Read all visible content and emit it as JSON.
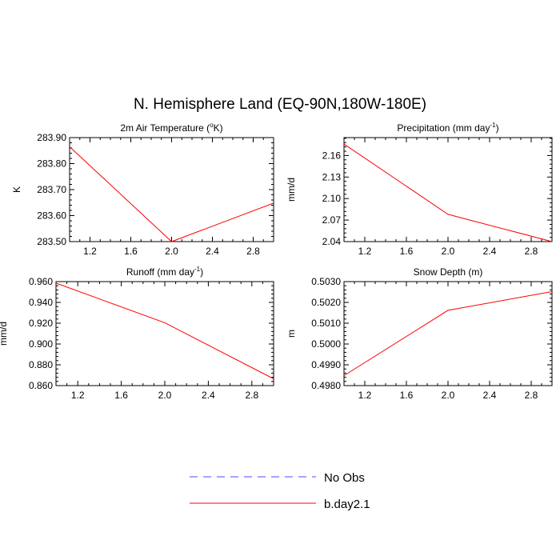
{
  "figure": {
    "title": "N. Hemisphere Land (EQ-90N,180W-180E)"
  },
  "legend": {
    "placement": "bottom-center",
    "entries": [
      {
        "name": "No Obs",
        "color": "#4b4bff",
        "dash": "dashed"
      },
      {
        "name": "b.day2.1",
        "color": "#ff0000",
        "dash": "solid"
      }
    ]
  },
  "chart_data": [
    {
      "type": "line",
      "title_main": "2m Air Temperature (",
      "title_sup": "o",
      "title_tail": "K)",
      "ylabel": "K",
      "xlim": [
        1,
        3
      ],
      "ylim": [
        283.5,
        283.9
      ],
      "xticks": [
        1.2,
        1.6,
        2.0,
        2.4,
        2.8
      ],
      "xtick_labels": [
        "1.2",
        "1.6",
        "2.0",
        "2.4",
        "2.8"
      ],
      "yticks": [
        283.5,
        283.6,
        283.7,
        283.8,
        283.9
      ],
      "ytick_labels": [
        "283.50",
        "283.60",
        "283.70",
        "283.80",
        "283.90"
      ],
      "x": [
        1,
        2,
        3
      ],
      "series": [
        {
          "name": "b.day2.1",
          "values": [
            283.865,
            283.5,
            283.648
          ]
        }
      ]
    },
    {
      "type": "line",
      "title_main": "Precipitation (mm day",
      "title_sup": "-1",
      "title_tail": ")",
      "ylabel": "mm/d",
      "xlim": [
        1,
        3
      ],
      "ylim": [
        2.04,
        2.185
      ],
      "xticks": [
        1.2,
        1.6,
        2.0,
        2.4,
        2.8
      ],
      "xtick_labels": [
        "1.2",
        "1.6",
        "2.0",
        "2.4",
        "2.8"
      ],
      "yticks": [
        2.04,
        2.07,
        2.1,
        2.13,
        2.16
      ],
      "ytick_labels": [
        "2.04",
        "2.07",
        "2.10",
        "2.13",
        "2.16"
      ],
      "x": [
        1,
        2,
        3
      ],
      "series": [
        {
          "name": "b.day2.1",
          "values": [
            2.176,
            2.078,
            2.04
          ]
        }
      ]
    },
    {
      "type": "line",
      "title_main": "Runoff (mm day",
      "title_sup": "-1",
      "title_tail": ")",
      "ylabel": "mm/d",
      "xlim": [
        1,
        3
      ],
      "ylim": [
        0.86,
        0.96
      ],
      "xticks": [
        1.2,
        1.6,
        2.0,
        2.4,
        2.8
      ],
      "xtick_labels": [
        "1.2",
        "1.6",
        "2.0",
        "2.4",
        "2.8"
      ],
      "yticks": [
        0.86,
        0.88,
        0.9,
        0.92,
        0.94,
        0.96
      ],
      "ytick_labels": [
        "0.860",
        "0.880",
        "0.900",
        "0.920",
        "0.940",
        "0.960"
      ],
      "x": [
        1,
        2,
        3
      ],
      "series": [
        {
          "name": "b.day2.1",
          "values": [
            0.9585,
            0.9205,
            0.8665
          ]
        }
      ]
    },
    {
      "type": "line",
      "title_main": "Snow Depth (m)",
      "title_sup": "",
      "title_tail": "",
      "ylabel": "m",
      "xlim": [
        1,
        3
      ],
      "ylim": [
        0.498,
        0.503
      ],
      "xticks": [
        1.2,
        1.6,
        2.0,
        2.4,
        2.8
      ],
      "xtick_labels": [
        "1.2",
        "1.6",
        "2.0",
        "2.4",
        "2.8"
      ],
      "yticks": [
        0.498,
        0.499,
        0.5,
        0.501,
        0.502,
        0.503
      ],
      "ytick_labels": [
        "0.4980",
        "0.4990",
        "0.5000",
        "0.5010",
        "0.5020",
        "0.5030"
      ],
      "x": [
        1,
        2,
        3
      ],
      "series": [
        {
          "name": "b.day2.1",
          "values": [
            0.49848,
            0.50162,
            0.50252
          ]
        }
      ]
    }
  ]
}
